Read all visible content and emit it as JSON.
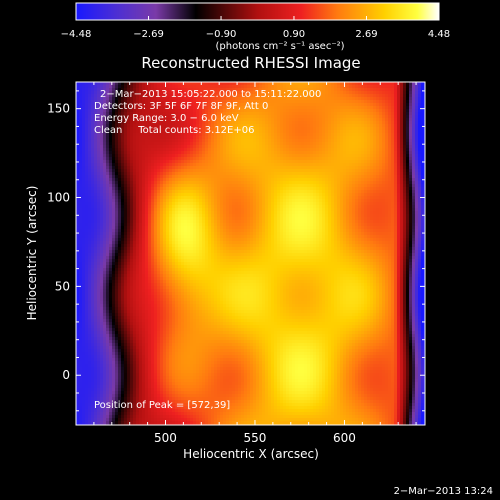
{
  "chart_data": {
    "type": "heatmap",
    "title": "Reconstructed RHESSI Image",
    "colorbar": {
      "min": -4.48,
      "max": 4.48,
      "tick_labels": [
        "−4.48",
        "−2.69",
        "−0.90",
        "0.90",
        "2.69",
        "4.48"
      ],
      "tick_values": [
        -4.48,
        -2.69,
        -0.9,
        0.9,
        2.69,
        4.48
      ],
      "unit_label": "(photons cm⁻² s⁻¹ asec⁻²)"
    },
    "annotations": [
      "2−Mar−2013 15:05:22.000 to 15:11:22.000",
      "Detectors: 3F 5F 6F 7F 8F 9F, Att 0",
      "Energy Range: 3.0 − 6.0 keV",
      "Clean     Total counts: 3.12E+06"
    ],
    "peak_label": "Position of Peak = [572,39]",
    "peak": [
      572,
      39
    ],
    "xlabel": "Heliocentric X (arcsec)",
    "ylabel": "Heliocentric Y (arcsec)",
    "xlim": [
      450,
      645
    ],
    "ylim": [
      -28,
      165
    ],
    "xticks": [
      500,
      550,
      600
    ],
    "yticks": [
      0,
      50,
      100,
      150
    ],
    "colormap": "rainbow/hot (blue-purple-black-red-orange-yellow-white)"
  },
  "footer": {
    "timestamp": "2−Mar−2013 13:24"
  }
}
